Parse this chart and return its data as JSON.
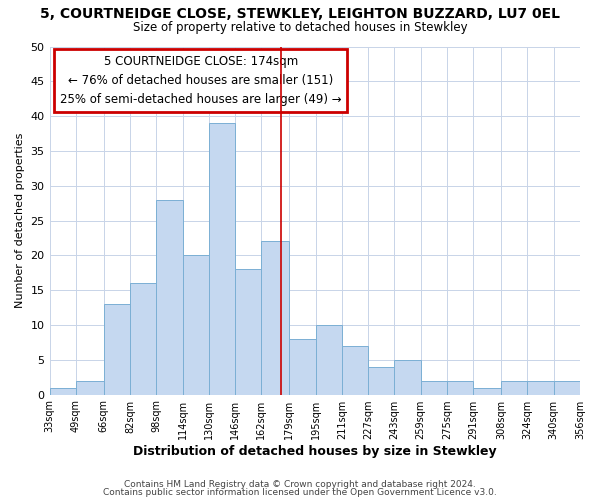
{
  "title": "5, COURTNEIDGE CLOSE, STEWKLEY, LEIGHTON BUZZARD, LU7 0EL",
  "subtitle": "Size of property relative to detached houses in Stewkley",
  "xlabel": "Distribution of detached houses by size in Stewkley",
  "ylabel": "Number of detached properties",
  "bin_labels": [
    "33sqm",
    "49sqm",
    "66sqm",
    "82sqm",
    "98sqm",
    "114sqm",
    "130sqm",
    "146sqm",
    "162sqm",
    "179sqm",
    "195sqm",
    "211sqm",
    "227sqm",
    "243sqm",
    "259sqm",
    "275sqm",
    "291sqm",
    "308sqm",
    "324sqm",
    "340sqm",
    "356sqm"
  ],
  "bar_values": [
    1,
    2,
    13,
    16,
    28,
    20,
    39,
    18,
    22,
    8,
    10,
    7,
    4,
    5,
    2,
    2,
    1,
    2,
    2,
    2
  ],
  "bar_color": "#c5d8f0",
  "bar_edgecolor": "#7bafd4",
  "bar_linewidth": 0.7,
  "vline_x": 174,
  "bin_edges": [
    33,
    49,
    66,
    82,
    98,
    114,
    130,
    146,
    162,
    179,
    195,
    211,
    227,
    243,
    259,
    275,
    291,
    308,
    324,
    340,
    356
  ],
  "ylim": [
    0,
    50
  ],
  "yticks": [
    0,
    5,
    10,
    15,
    20,
    25,
    30,
    35,
    40,
    45,
    50
  ],
  "annotation_title": "5 COURTNEIDGE CLOSE: 174sqm",
  "annotation_line1": "← 76% of detached houses are smaller (151)",
  "annotation_line2": "25% of semi-detached houses are larger (49) →",
  "annotation_box_color": "#ffffff",
  "annotation_box_edgecolor": "#cc0000",
  "vline_color": "#cc0000",
  "grid_color": "#c8d4e8",
  "plot_bg_color": "#ffffff",
  "fig_bg_color": "#ffffff",
  "footer_line1": "Contains HM Land Registry data © Crown copyright and database right 2024.",
  "footer_line2": "Contains public sector information licensed under the Open Government Licence v3.0."
}
